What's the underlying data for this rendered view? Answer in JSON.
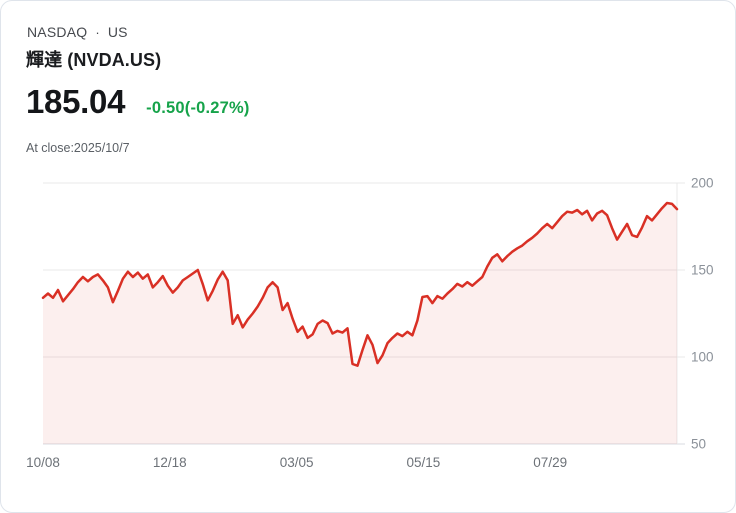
{
  "header": {
    "exchange": "NASDAQ",
    "separator": "·",
    "region": "US",
    "title": "輝達 (NVDA.US)"
  },
  "quote": {
    "price": "185.04",
    "change": "-0.50(-0.27%)",
    "close_info": "At close:2025/10/7"
  },
  "colors": {
    "line_red": "#d93025",
    "area_fill": "rgba(217,48,37,0.08)",
    "grid": "#e9e9e9",
    "axis_line": "#d8dbe0",
    "tick_text": "#8b9199",
    "x_tick_text": "#6d7278",
    "change_green": "#16a34a"
  },
  "chart_data": {
    "type": "area",
    "title": "",
    "xlabel": "",
    "ylabel": "",
    "ylim": [
      50,
      200
    ],
    "yticks": [
      200,
      150,
      100,
      50
    ],
    "xticks": [
      {
        "label": "10/08",
        "pos": 0.0
      },
      {
        "label": "12/18",
        "pos": 0.2
      },
      {
        "label": "03/05",
        "pos": 0.4
      },
      {
        "label": "05/15",
        "pos": 0.6
      },
      {
        "label": "07/29",
        "pos": 0.8
      }
    ],
    "grid": true,
    "legend": false,
    "series": [
      {
        "name": "NVDA.US",
        "values": [
          134,
          136.5,
          134,
          138.5,
          132,
          135.5,
          139,
          143,
          146,
          143.5,
          146,
          147.5,
          144,
          140,
          131.5,
          138,
          145,
          149,
          146,
          148.5,
          145,
          147.5,
          140,
          143,
          146.5,
          141,
          137,
          140,
          144,
          146,
          148,
          150,
          142,
          132.5,
          138,
          144.5,
          149,
          144,
          119,
          124,
          117,
          121.5,
          125,
          129,
          134,
          140,
          143,
          140,
          127,
          131,
          122,
          114.5,
          117.5,
          111,
          113,
          119,
          121,
          119.5,
          113.5,
          115,
          114,
          116.5,
          96,
          95,
          104,
          112.5,
          107,
          96.5,
          101,
          108,
          111,
          113.5,
          112,
          114.5,
          112.5,
          121,
          134.5,
          135,
          131,
          135,
          133.5,
          136.5,
          139,
          142,
          140.5,
          143,
          141,
          143.5,
          146,
          152,
          157,
          159,
          155,
          158,
          160.5,
          162.5,
          164,
          166.5,
          168.5,
          171,
          174,
          176.5,
          174,
          177.5,
          181,
          183.5,
          183,
          184.5,
          182,
          184,
          178.5,
          182.5,
          184,
          181.5,
          174,
          167.5,
          172,
          176.5,
          170,
          169,
          174.5,
          181,
          178.5,
          182,
          185.5,
          188.5,
          188,
          185
        ]
      }
    ]
  }
}
